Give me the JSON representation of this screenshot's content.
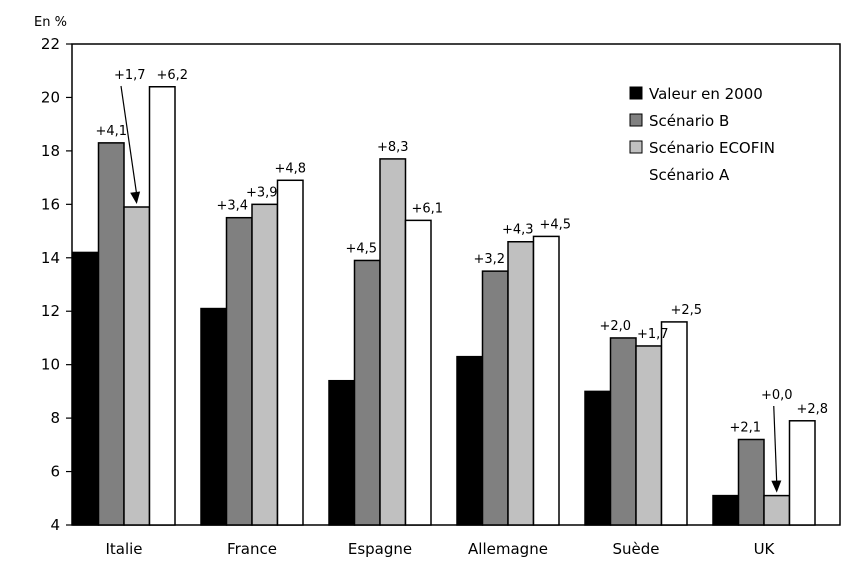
{
  "chart_data": {
    "type": "bar",
    "ylabel": "En %",
    "ylim": [
      4,
      22
    ],
    "yticks": [
      4,
      6,
      8,
      10,
      12,
      14,
      16,
      18,
      20,
      22
    ],
    "grid": false,
    "legend_position": "top-right",
    "categories": [
      "Italie",
      "France",
      "Espagne",
      "Allemagne",
      "Suède",
      "UK"
    ],
    "series": [
      {
        "name": "Valeur en 2000",
        "color": "#000000",
        "values": [
          14.2,
          12.1,
          9.4,
          10.3,
          9.0,
          5.1
        ],
        "labels": [
          "",
          "",
          "",
          "",
          "",
          ""
        ]
      },
      {
        "name": "Scénario B",
        "color": "#808080",
        "values": [
          18.3,
          15.5,
          13.9,
          13.5,
          11.0,
          7.2
        ],
        "labels": [
          "+4,1",
          "+3,4",
          "+4,5",
          "+3,2",
          "+2,0",
          "+2,1"
        ]
      },
      {
        "name": "Scénario ECOFIN",
        "color": "#c0c0c0",
        "values": [
          15.9,
          16.0,
          17.7,
          14.6,
          10.7,
          5.1
        ],
        "labels": [
          "+1,7",
          "+3,9",
          "+8,3",
          "+4,3",
          "+1,7",
          "+0,0"
        ]
      },
      {
        "name": "Scénario A",
        "color": "#ffffff",
        "values": [
          20.4,
          16.9,
          15.4,
          14.8,
          11.6,
          7.9
        ],
        "labels": [
          "+6,2",
          "+4,8",
          "+6,1",
          "+4,5",
          "+2,5",
          "+2,8"
        ]
      }
    ]
  }
}
